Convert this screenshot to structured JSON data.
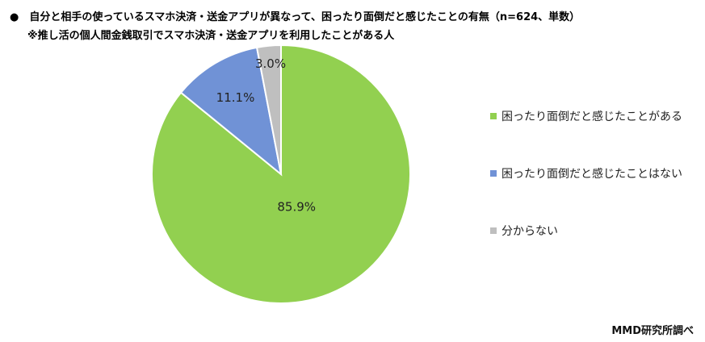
{
  "chart_data": {
    "type": "pie",
    "title": "●　自分と相手の使っているスマホ決済・送金アプリが異なって、困ったり面倒だと感じたことの有無（n=624、単数）",
    "subtitle": "※推し活の個人間金銭取引でスマホ決済・送金アプリを利用したことがある人",
    "slices": [
      {
        "name": "困ったり面倒だと感じたことがある",
        "value": 85.9,
        "label": "85.9%",
        "color": "#92d050"
      },
      {
        "name": "困ったり面倒だと感じたことはない",
        "value": 11.1,
        "label": "11.1%",
        "color": "#7092d6"
      },
      {
        "name": "分からない",
        "value": 3.0,
        "label": "3.0%",
        "color": "#bfbfbf"
      }
    ],
    "start_angle": "12 o'clock",
    "direction": "clockwise",
    "legend": "right",
    "source": "MMD研究所調べ"
  }
}
